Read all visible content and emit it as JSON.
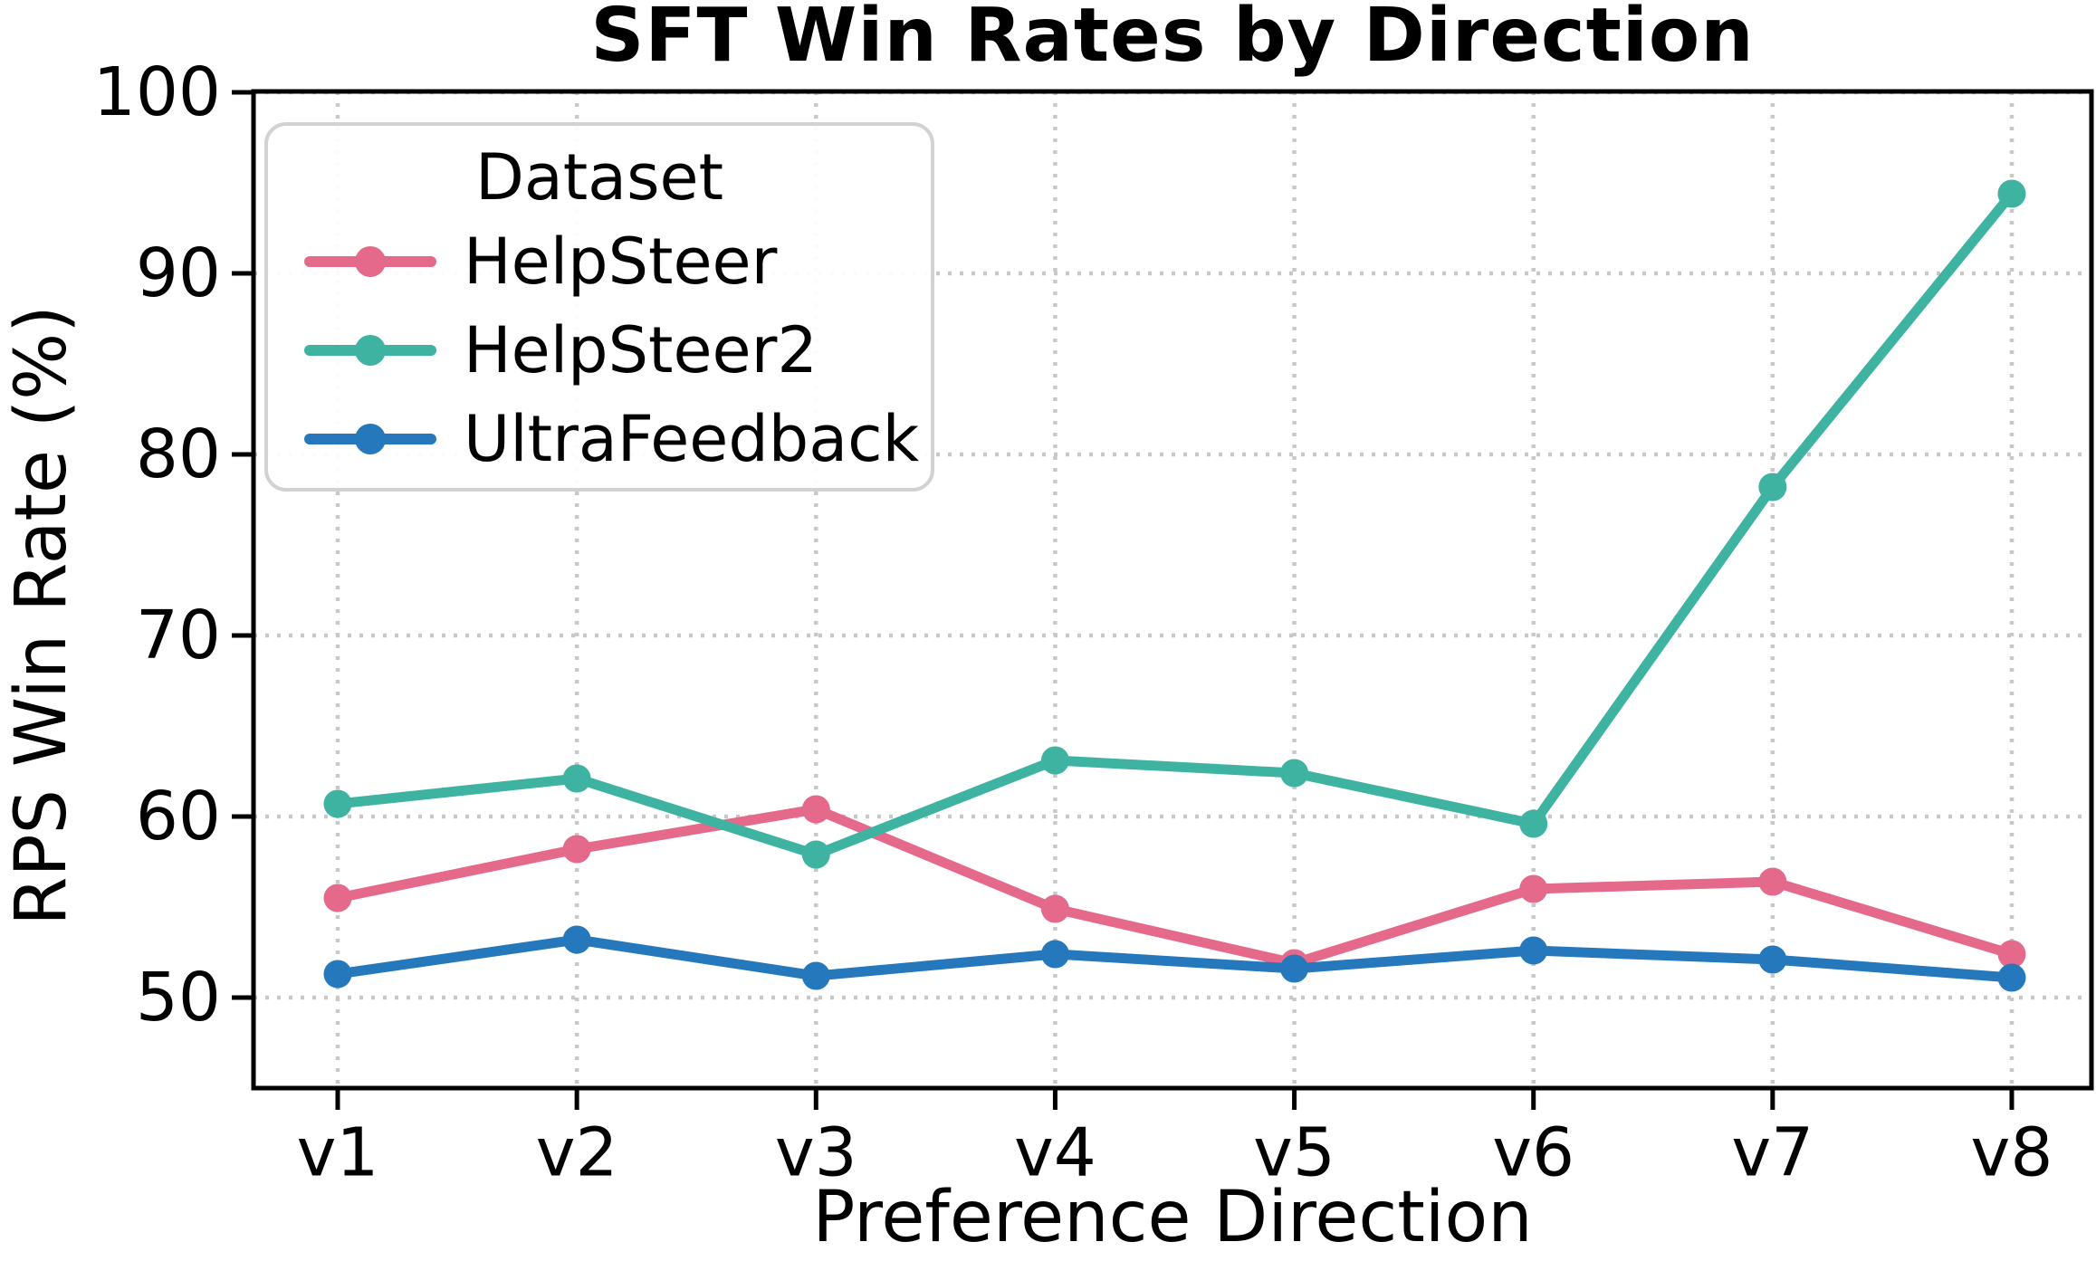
{
  "chart": {
    "title": "SFT Win Rates by Direction",
    "xlabel": "Preference Direction",
    "ylabel": "RPS Win Rate (%)",
    "legend_title": "Dataset"
  },
  "chart_data": {
    "type": "line",
    "title": "SFT Win Rates by Direction",
    "xlabel": "Preference Direction",
    "ylabel": "RPS Win Rate (%)",
    "categories": [
      "v1",
      "v2",
      "v3",
      "v4",
      "v5",
      "v6",
      "v7",
      "v8"
    ],
    "y_ticks": [
      50,
      60,
      70,
      80,
      90,
      100
    ],
    "ylim": [
      45,
      100
    ],
    "grid": "dotted, both axes",
    "legend_title": "Dataset",
    "legend_position": "upper left",
    "colors": {
      "grid": "#c8c8c8",
      "spine": "#000000",
      "legend_border": "#d2d2d2"
    },
    "series": [
      {
        "name": "HelpSteer",
        "color": "#E5698B",
        "values": [
          55.5,
          58.2,
          60.4,
          54.9,
          51.9,
          56.0,
          56.4,
          52.4
        ]
      },
      {
        "name": "HelpSteer2",
        "color": "#3EB3A2",
        "values": [
          60.7,
          62.1,
          57.9,
          63.1,
          62.4,
          59.6,
          78.2,
          94.4
        ]
      },
      {
        "name": "UltraFeedback",
        "color": "#2678BC",
        "values": [
          51.3,
          53.2,
          51.2,
          52.4,
          51.6,
          52.6,
          52.1,
          51.1
        ]
      }
    ]
  }
}
